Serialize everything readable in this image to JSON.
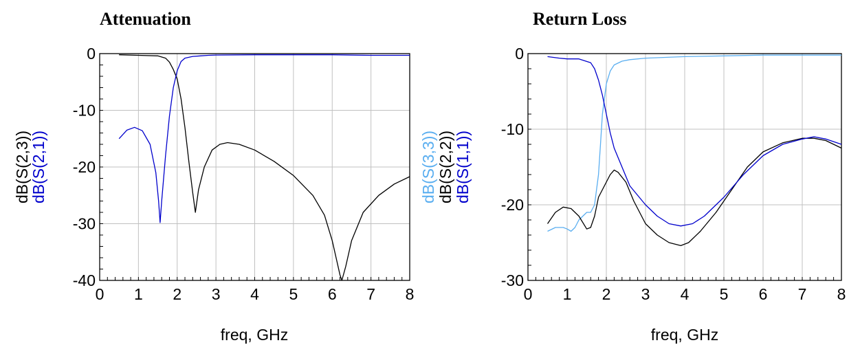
{
  "chart_data": [
    {
      "type": "line",
      "title": "Attenuation",
      "xlabel": "freq, GHz",
      "xlim": [
        0,
        8
      ],
      "ylim": [
        -40,
        0
      ],
      "xticks": [
        "0",
        "1",
        "2",
        "3",
        "4",
        "5",
        "6",
        "7",
        "8"
      ],
      "yticks": [
        "0",
        "-10",
        "-20",
        "-30",
        "-40"
      ],
      "grid": true,
      "ylabel_series_order": [
        "dB(S(2,3))",
        "dB(S(2,1))"
      ],
      "series": [
        {
          "name": "dB(S(2,3))",
          "color": "#000000",
          "x": [
            0.5,
            1.0,
            1.5,
            1.7,
            1.8,
            1.9,
            2.0,
            2.1,
            2.2,
            2.3,
            2.4,
            2.47,
            2.55,
            2.7,
            2.9,
            3.1,
            3.3,
            3.6,
            4.0,
            4.5,
            5.0,
            5.5,
            5.8,
            6.0,
            6.1,
            6.2,
            6.25,
            6.35,
            6.5,
            6.8,
            7.2,
            7.6,
            8.0
          ],
          "y": [
            -0.2,
            -0.3,
            -0.4,
            -0.8,
            -1.5,
            -2.8,
            -4.5,
            -8.0,
            -13.0,
            -19.0,
            -24.5,
            -28.0,
            -24.0,
            -20.0,
            -17.0,
            -16.0,
            -15.7,
            -16.0,
            -17.0,
            -19.0,
            -21.5,
            -25.0,
            -28.5,
            -33.0,
            -36.0,
            -39.0,
            -40.0,
            -37.5,
            -33.0,
            -28.0,
            -25.0,
            -23.0,
            -21.7
          ]
        },
        {
          "name": "dB(S(2,1))",
          "color": "#0000cc",
          "x": [
            0.5,
            0.7,
            0.9,
            1.1,
            1.3,
            1.45,
            1.52,
            1.56,
            1.6,
            1.7,
            1.8,
            1.9,
            2.0,
            2.1,
            2.2,
            2.4,
            2.6,
            2.8,
            3.0,
            4.0,
            5.0,
            6.0,
            7.0,
            8.0
          ],
          "y": [
            -15.0,
            -13.5,
            -13.0,
            -13.6,
            -16.0,
            -21.0,
            -26.0,
            -29.8,
            -26.0,
            -18.0,
            -11.0,
            -6.0,
            -3.0,
            -1.4,
            -0.8,
            -0.5,
            -0.4,
            -0.3,
            -0.25,
            -0.2,
            -0.2,
            -0.2,
            -0.3,
            -0.3
          ]
        }
      ]
    },
    {
      "type": "line",
      "title": "Return Loss",
      "xlabel": "freq, GHz",
      "xlim": [
        0,
        8
      ],
      "ylim": [
        -30,
        0
      ],
      "xticks": [
        "0",
        "1",
        "2",
        "3",
        "4",
        "5",
        "6",
        "7",
        "8"
      ],
      "yticks": [
        "0",
        "-10",
        "-20",
        "-30"
      ],
      "grid": true,
      "ylabel_series_order": [
        "dB(S(3,3))",
        "dB(S(2,2))",
        "dB(S(1,1))"
      ],
      "series": [
        {
          "name": "dB(S(3,3))",
          "color": "#5aaef0",
          "x": [
            0.5,
            0.7,
            0.9,
            1.0,
            1.1,
            1.2,
            1.3,
            1.5,
            1.6,
            1.7,
            1.8,
            1.85,
            1.9,
            2.0,
            2.1,
            2.2,
            2.4,
            2.6,
            3.0,
            3.5,
            4.0,
            5.0,
            6.0,
            7.0,
            8.0
          ],
          "y": [
            -23.5,
            -23.0,
            -23.0,
            -23.2,
            -23.5,
            -23.0,
            -22.0,
            -21.0,
            -21.0,
            -20.0,
            -16.0,
            -12.0,
            -8.0,
            -4.0,
            -2.3,
            -1.5,
            -1.0,
            -0.8,
            -0.6,
            -0.5,
            -0.4,
            -0.3,
            -0.2,
            -0.2,
            -0.2
          ]
        },
        {
          "name": "dB(S(2,2))",
          "color": "#000000",
          "x": [
            0.5,
            0.7,
            0.9,
            1.1,
            1.3,
            1.5,
            1.6,
            1.7,
            1.8,
            2.0,
            2.1,
            2.2,
            2.3,
            2.5,
            2.7,
            3.0,
            3.3,
            3.6,
            3.9,
            4.1,
            4.4,
            4.8,
            5.2,
            5.6,
            6.0,
            6.5,
            7.0,
            7.3,
            7.6,
            8.0
          ],
          "y": [
            -22.5,
            -21.0,
            -20.3,
            -20.5,
            -21.5,
            -23.2,
            -23.0,
            -21.5,
            -19.0,
            -17.0,
            -16.0,
            -15.4,
            -15.7,
            -17.0,
            -19.5,
            -22.5,
            -24.0,
            -25.0,
            -25.4,
            -25.0,
            -23.5,
            -21.0,
            -18.0,
            -15.0,
            -13.0,
            -11.8,
            -11.2,
            -11.2,
            -11.5,
            -12.5
          ]
        },
        {
          "name": "dB(S(1,1))",
          "color": "#0000cc",
          "x": [
            0.5,
            0.8,
            1.0,
            1.3,
            1.6,
            1.7,
            1.8,
            1.9,
            2.0,
            2.1,
            2.2,
            2.4,
            2.6,
            3.0,
            3.3,
            3.6,
            3.9,
            4.2,
            4.5,
            5.0,
            5.5,
            6.0,
            6.5,
            7.0,
            7.3,
            7.6,
            8.0
          ],
          "y": [
            -0.4,
            -0.6,
            -0.7,
            -0.7,
            -1.2,
            -2.0,
            -3.5,
            -5.5,
            -8.0,
            -10.5,
            -12.5,
            -15.0,
            -17.5,
            -20.0,
            -21.5,
            -22.5,
            -22.8,
            -22.5,
            -21.5,
            -19.0,
            -16.0,
            -13.5,
            -12.0,
            -11.3,
            -11.0,
            -11.3,
            -12.0
          ]
        }
      ]
    }
  ]
}
